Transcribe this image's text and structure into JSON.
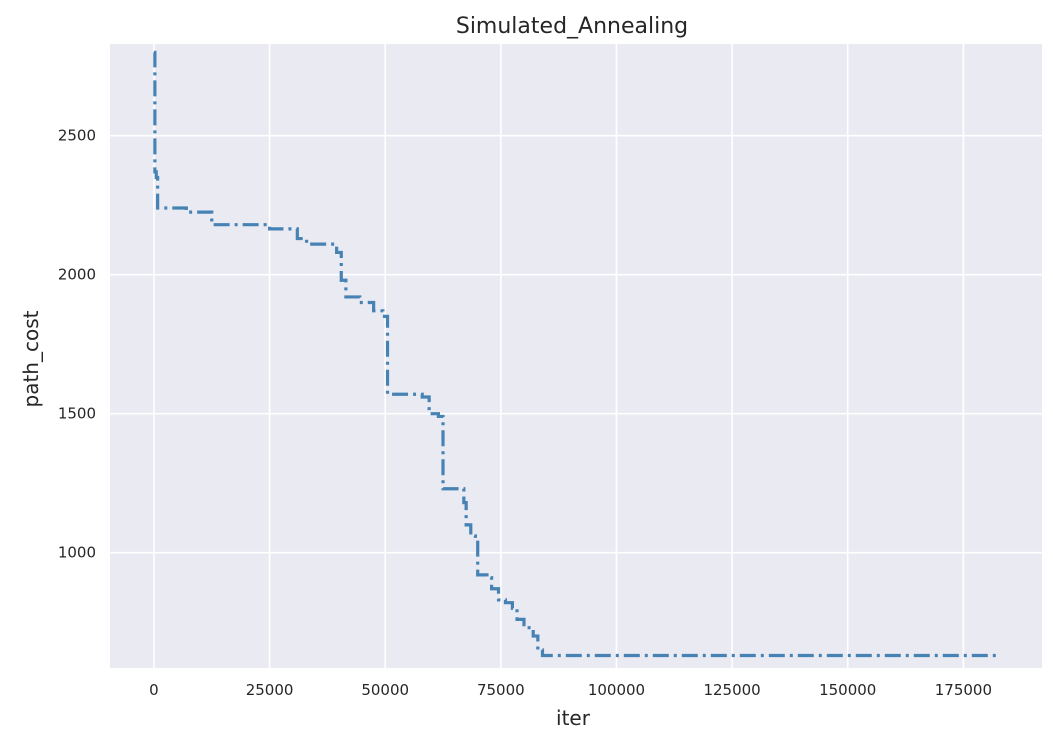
{
  "chart_data": {
    "type": "line",
    "title": "Simulated_Annealing",
    "xlabel": "iter",
    "ylabel": "path_cost",
    "xlim": [
      -9500,
      192000
    ],
    "ylim": [
      585,
      2830
    ],
    "xticks": [
      0,
      25000,
      50000,
      75000,
      100000,
      125000,
      150000,
      175000
    ],
    "yticks": [
      1000,
      1500,
      2000,
      2500
    ],
    "grid": true,
    "legend": "none",
    "line_style": "dashdot",
    "colors": {
      "plot_bg": "#eaeaf2",
      "grid": "#ffffff",
      "line": "#4682b4",
      "text": "#262626"
    },
    "series": [
      {
        "x": [
          0,
          200,
          500,
          800,
          1200,
          7000,
          12500,
          25000,
          31000,
          33000,
          39500,
          40500,
          41500,
          44500,
          47500,
          49500,
          50500,
          58000,
          59500,
          61500,
          62500,
          67000,
          67500,
          68500,
          69500,
          70000,
          72000,
          73000,
          74500,
          76000,
          77500,
          78500,
          80000,
          82000,
          83000,
          84000,
          183000
        ],
        "y": [
          2800,
          2370,
          2350,
          2240,
          2240,
          2225,
          2180,
          2165,
          2130,
          2110,
          2080,
          1980,
          1920,
          1900,
          1870,
          1850,
          1570,
          1560,
          1500,
          1490,
          1230,
          1180,
          1100,
          1060,
          1050,
          920,
          910,
          870,
          830,
          820,
          800,
          760,
          730,
          700,
          650,
          630,
          630
        ]
      }
    ]
  }
}
